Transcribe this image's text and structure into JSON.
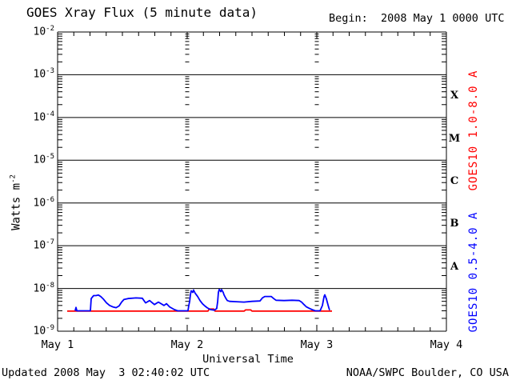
{
  "header": {
    "title": "GOES Xray Flux (5 minute data)",
    "begin_label": "Begin:  2008 May 1 0000 UTC"
  },
  "footer": {
    "updated": "Updated 2008 May  3 02:40:02 UTC",
    "credit": "NOAA/SWPC Boulder, CO USA"
  },
  "side_labels": {
    "goes_long": "GOES10 1.0-8.0 A",
    "goes_short": "GOES10 0.5-4.0 A"
  },
  "colors": {
    "long_channel": "#ff0000",
    "short_channel": "#0000ff",
    "axis": "#000000",
    "background": "#ffffff"
  },
  "chart_data": {
    "type": "line",
    "title": "GOES Xray Flux (5 minute data)",
    "x_axis": {
      "label": "Universal Time",
      "tick_labels": [
        "May 1",
        "May 2",
        "May 3",
        "May 4"
      ],
      "range_days": [
        0,
        3
      ],
      "minor_ticks_per_day": 8
    },
    "y_axis": {
      "label_prefix": "Watts m",
      "label_exponent": "-2",
      "scale": "log",
      "range": [
        1e-09,
        0.01
      ],
      "tick_exponents": [
        -2,
        -3,
        -4,
        -5,
        -6,
        -7,
        -8,
        -9
      ],
      "gridline_exponents": [
        -3,
        -4,
        -5,
        -6,
        -7,
        -8
      ]
    },
    "flare_class_letters": [
      "X",
      "M",
      "C",
      "B",
      "A"
    ],
    "flare_class_mid_exponents": [
      -3.5,
      -4.5,
      -5.5,
      -6.5,
      -7.5
    ],
    "day_boundary_dotted_lines_days": [
      1,
      2
    ],
    "legend_position": "right-rotated",
    "series": [
      {
        "name": "GOES10 1.0-8.0 A",
        "color": "#ff0000",
        "points": [
          [
            0.074,
            2.95e-09
          ],
          [
            1.16,
            2.95e-09
          ],
          [
            1.17,
            3.3e-09
          ],
          [
            1.205,
            3.3e-09
          ],
          [
            1.215,
            2.95e-09
          ],
          [
            1.44,
            2.95e-09
          ],
          [
            1.45,
            3.15e-09
          ],
          [
            1.49,
            3.15e-09
          ],
          [
            1.5,
            2.95e-09
          ],
          [
            2.117,
            2.95e-09
          ]
        ]
      },
      {
        "name": "GOES10 0.5-4.0 A",
        "color": "#0000ff",
        "points": [
          [
            0.135,
            3e-09
          ],
          [
            0.142,
            3.6e-09
          ],
          [
            0.149,
            3e-09
          ],
          [
            0.253,
            3e-09
          ],
          [
            0.259,
            5.8e-09
          ],
          [
            0.278,
            6.8e-09
          ],
          [
            0.296,
            6.8e-09
          ],
          [
            0.315,
            7e-09
          ],
          [
            0.333,
            6.5e-09
          ],
          [
            0.352,
            5.7e-09
          ],
          [
            0.377,
            4.6e-09
          ],
          [
            0.401,
            4e-09
          ],
          [
            0.426,
            3.7e-09
          ],
          [
            0.451,
            3.55e-09
          ],
          [
            0.475,
            3.9e-09
          ],
          [
            0.494,
            4.8e-09
          ],
          [
            0.512,
            5.5e-09
          ],
          [
            0.543,
            5.8e-09
          ],
          [
            0.605,
            6e-09
          ],
          [
            0.654,
            5.9e-09
          ],
          [
            0.679,
            4.6e-09
          ],
          [
            0.71,
            5.2e-09
          ],
          [
            0.747,
            4.2e-09
          ],
          [
            0.778,
            4.8e-09
          ],
          [
            0.821,
            4e-09
          ],
          [
            0.84,
            4.4e-09
          ],
          [
            0.864,
            3.7e-09
          ],
          [
            0.901,
            3.2e-09
          ],
          [
            0.926,
            3e-09
          ],
          [
            1.006,
            3e-09
          ],
          [
            1.012,
            3.9e-09
          ],
          [
            1.019,
            5e-09
          ],
          [
            1.025,
            7.1e-09
          ],
          [
            1.031,
            8.8e-09
          ],
          [
            1.043,
            8.1e-09
          ],
          [
            1.049,
            9.2e-09
          ],
          [
            1.062,
            7.7e-09
          ],
          [
            1.08,
            6.5e-09
          ],
          [
            1.099,
            5.2e-09
          ],
          [
            1.117,
            4.4e-09
          ],
          [
            1.136,
            3.9e-09
          ],
          [
            1.154,
            3.55e-09
          ],
          [
            1.179,
            3.2e-09
          ],
          [
            1.21,
            3.1e-09
          ],
          [
            1.228,
            3.4e-09
          ],
          [
            1.235,
            5e-09
          ],
          [
            1.241,
            8.1e-09
          ],
          [
            1.247,
            9.5e-09
          ],
          [
            1.259,
            8.4e-09
          ],
          [
            1.265,
            9.4e-09
          ],
          [
            1.278,
            8.1e-09
          ],
          [
            1.284,
            7.1e-09
          ],
          [
            1.296,
            6e-09
          ],
          [
            1.309,
            5.2e-09
          ],
          [
            1.327,
            5e-09
          ],
          [
            1.377,
            4.9e-09
          ],
          [
            1.438,
            4.8e-09
          ],
          [
            1.5,
            5e-09
          ],
          [
            1.562,
            5.1e-09
          ],
          [
            1.58,
            6e-09
          ],
          [
            1.599,
            6.5e-09
          ],
          [
            1.648,
            6.5e-09
          ],
          [
            1.667,
            5.8e-09
          ],
          [
            1.685,
            5.3e-09
          ],
          [
            1.747,
            5.2e-09
          ],
          [
            1.809,
            5.3e-09
          ],
          [
            1.864,
            5.2e-09
          ],
          [
            1.883,
            4.8e-09
          ],
          [
            1.901,
            4.2e-09
          ],
          [
            1.92,
            3.7e-09
          ],
          [
            1.944,
            3.4e-09
          ],
          [
            1.963,
            3.2e-09
          ],
          [
            1.988,
            3e-09
          ],
          [
            2.025,
            3e-09
          ],
          [
            2.043,
            4e-09
          ],
          [
            2.056,
            6.5e-09
          ],
          [
            2.062,
            7.1e-09
          ],
          [
            2.074,
            5.7e-09
          ],
          [
            2.086,
            4.2e-09
          ],
          [
            2.093,
            3.5e-09
          ],
          [
            2.099,
            3.1e-09
          ]
        ]
      }
    ]
  }
}
